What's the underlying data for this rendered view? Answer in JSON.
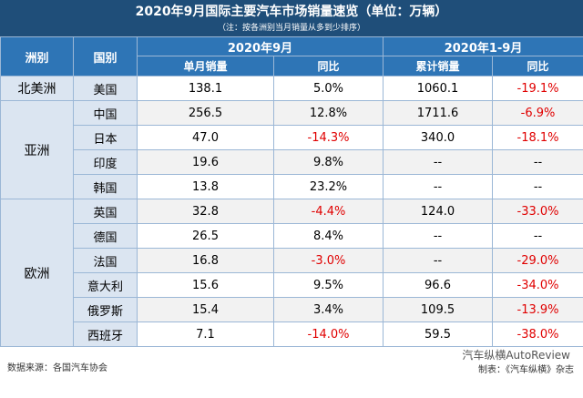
{
  "header": {
    "title": "2020年9月国际主要汽车市场销量速览（单位：万辆）",
    "subtitle": "（注：按各洲别当月销量从多到少排序）"
  },
  "table": {
    "side_headers": [
      "洲别",
      "国别"
    ],
    "group_headers": [
      "2020年9月",
      "2020年1-9月"
    ],
    "columns": [
      "单月销量",
      "同比",
      "累计销量",
      "同比"
    ],
    "groups": [
      {
        "name": "北美洲",
        "rows": [
          [
            "美国",
            "138.1",
            "5.0%",
            "1060.1",
            "-19.1%"
          ]
        ]
      },
      {
        "name": "亚洲",
        "rows": [
          [
            "中国",
            "256.5",
            "12.8%",
            "1711.6",
            "-6.9%"
          ],
          [
            "日本",
            "47.0",
            "-14.3%",
            "340.0",
            "-18.1%"
          ],
          [
            "印度",
            "19.6",
            "9.8%",
            "--",
            "--"
          ],
          [
            "韩国",
            "13.8",
            "23.2%",
            "--",
            "--"
          ]
        ]
      },
      {
        "name": "欧洲",
        "rows": [
          [
            "英国",
            "32.8",
            "-4.4%",
            "124.0",
            "-33.0%"
          ],
          [
            "德国",
            "26.5",
            "8.4%",
            "--",
            "--"
          ],
          [
            "法国",
            "16.8",
            "-3.0%",
            "--",
            "-29.0%"
          ],
          [
            "意大利",
            "15.6",
            "9.5%",
            "96.6",
            "-34.0%"
          ],
          [
            "俄罗斯",
            "15.4",
            "3.4%",
            "109.5",
            "-13.9%"
          ],
          [
            "西班牙",
            "7.1",
            "-14.0%",
            "59.5",
            "-38.0%"
          ]
        ]
      }
    ]
  },
  "footer": {
    "source": "数据来源：各国汽车协会",
    "maker": "制表：《汽车纵横》杂志",
    "watermark": "汽车纵横AutoReview"
  }
}
